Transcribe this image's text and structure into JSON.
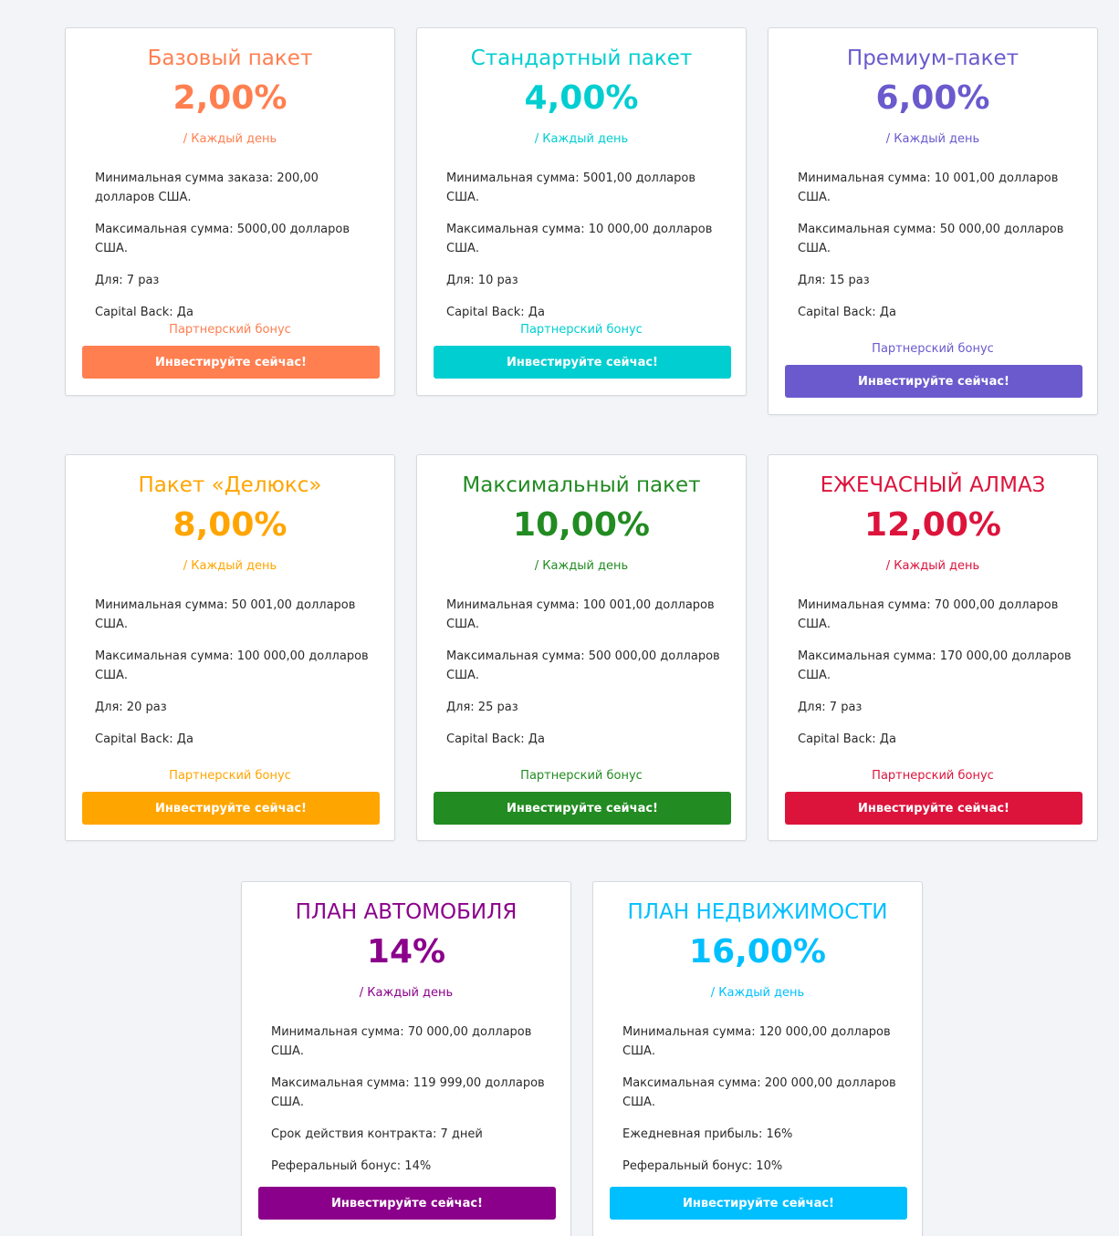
{
  "packages": [
    {
      "title": "Базовый пакет",
      "rate": "2,00%",
      "period": "/ Каждый день",
      "color": "#ff7f50",
      "features": [
        "Минимальная сумма заказа: 200,00 долларов США.",
        "Максимальная сумма: 5000,00 долларов США.",
        "Для: 7 раз",
        "Capital Back: Да"
      ],
      "bonus": "Партнерский бонус",
      "button": "Инвестируйте сейчас!"
    },
    {
      "title": "Стандартный пакет",
      "rate": "4,00%",
      "period": "/ Каждый день",
      "color": "#00ced1",
      "features": [
        "Минимальная сумма: 5001,00 долларов США.",
        "Максимальная сумма: 10 000,00 долларов США.",
        "Для: 10 раз",
        "Capital Back: Да"
      ],
      "bonus": "Партнерский бонус",
      "button": "Инвестируйте сейчас!"
    },
    {
      "title": "Премиум-пакет",
      "rate": "6,00%",
      "period": "/ Каждый день",
      "color": "#6a5acd",
      "features": [
        "Минимальная сумма: 10 001,00 долларов США.",
        "Максимальная сумма: 50 000,00 долларов США.",
        "Для: 15 раз",
        "Capital Back: Да"
      ],
      "bonus": "Партнерский бонус",
      "button": "Инвестируйте сейчас!"
    },
    {
      "title": "Пакет «Делюкс»",
      "rate": "8,00%",
      "period": "/ Каждый день",
      "color": "#ffa500",
      "features": [
        "Минимальная сумма: 50 001,00 долларов США.",
        "Максимальная сумма: 100 000,00 долларов США.",
        "Для: 20 раз",
        "Capital Back: Да"
      ],
      "bonus": "Партнерский бонус",
      "button": "Инвестируйте сейчас!"
    },
    {
      "title": "Максимальный пакет",
      "rate": "10,00%",
      "period": "/ Каждый день",
      "color": "#228b22",
      "features": [
        "Минимальная сумма: 100 001,00 долларов США.",
        "Максимальная сумма: 500 000,00 долларов США.",
        "Для: 25 раз",
        "Capital Back: Да"
      ],
      "bonus": "Партнерский бонус",
      "button": "Инвестируйте сейчас!"
    },
    {
      "title": "ЕЖЕЧАСНЫЙ АЛМАЗ",
      "rate": "12,00%",
      "period": "/ Каждый день",
      "color": "#dc143c",
      "features": [
        "Минимальная сумма: 70 000,00 долларов США.",
        "Максимальная сумма: 170 000,00 долларов США.",
        "Для: 7 раз",
        "Capital Back: Да"
      ],
      "bonus": "Партнерский бонус",
      "button": "Инвестируйте сейчас!"
    },
    {
      "title": "ПЛАН АВТОМОБИЛЯ",
      "rate": "14%",
      "period": "/ Каждый день",
      "color": "#8b008b",
      "features": [
        "Минимальная сумма: 70 000,00 долларов США.",
        "Максимальная сумма: 119 999,00 долларов США.",
        "Срок действия контракта: 7 дней",
        "Реферальный бонус: 14%"
      ],
      "bonus": "",
      "button": "Инвестируйте сейчас!"
    },
    {
      "title": "ПЛАН НЕДВИЖИМОСТИ",
      "rate": "16,00%",
      "period": "/ Каждый день",
      "color": "#00bfff",
      "features": [
        "Минимальная сумма: 120 000,00 долларов США.",
        "Максимальная сумма: 200 000,00 долларов США.",
        "Ежедневная прибыль: 16%",
        "Реферальный бонус: 10%"
      ],
      "bonus": "",
      "button": "Инвестируйте сейчас!"
    }
  ]
}
